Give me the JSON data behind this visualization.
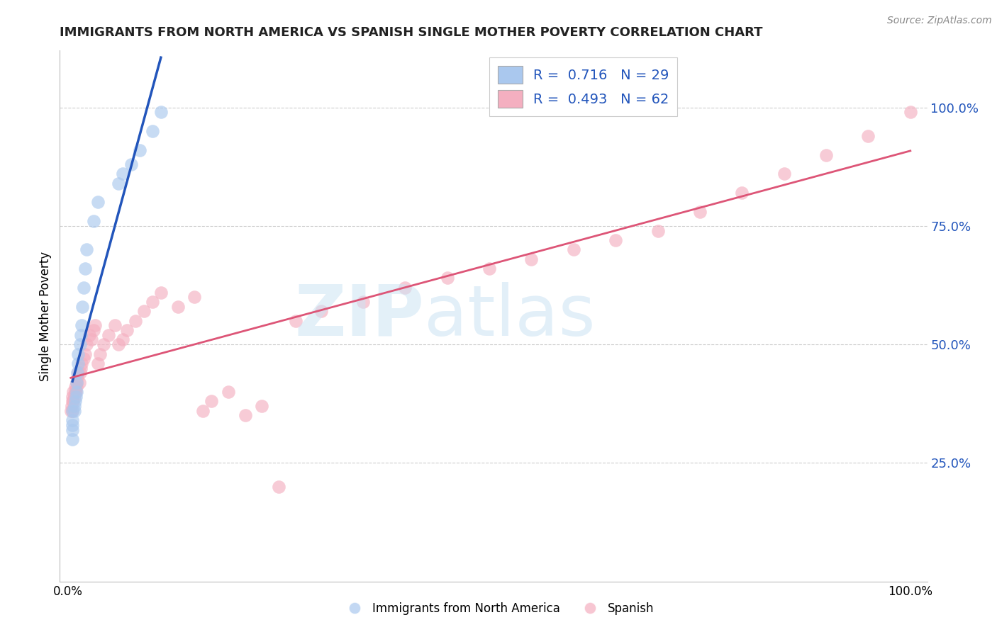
{
  "title": "IMMIGRANTS FROM NORTH AMERICA VS SPANISH SINGLE MOTHER POVERTY CORRELATION CHART",
  "source": "Source: ZipAtlas.com",
  "ylabel": "Single Mother Poverty",
  "legend_label1": "Immigrants from North America",
  "legend_label2": "Spanish",
  "R1": 0.716,
  "N1": 29,
  "R2": 0.493,
  "N2": 62,
  "color_blue": "#aac8ee",
  "color_pink": "#f4afc0",
  "line_blue": "#2255bb",
  "line_pink": "#dd5577",
  "blue_x": [
    0.005,
    0.005,
    0.005,
    0.005,
    0.005,
    0.007,
    0.007,
    0.008,
    0.009,
    0.01,
    0.01,
    0.011,
    0.012,
    0.012,
    0.014,
    0.015,
    0.016,
    0.017,
    0.018,
    0.02,
    0.022,
    0.03,
    0.035,
    0.06,
    0.065,
    0.075,
    0.085,
    0.1,
    0.11
  ],
  "blue_y": [
    0.3,
    0.32,
    0.33,
    0.34,
    0.36,
    0.36,
    0.37,
    0.38,
    0.39,
    0.4,
    0.42,
    0.44,
    0.46,
    0.48,
    0.5,
    0.52,
    0.54,
    0.58,
    0.62,
    0.66,
    0.7,
    0.76,
    0.8,
    0.84,
    0.86,
    0.88,
    0.91,
    0.95,
    0.99
  ],
  "pink_x": [
    0.003,
    0.004,
    0.005,
    0.005,
    0.005,
    0.006,
    0.006,
    0.007,
    0.008,
    0.008,
    0.009,
    0.01,
    0.01,
    0.011,
    0.012,
    0.013,
    0.014,
    0.015,
    0.016,
    0.018,
    0.02,
    0.022,
    0.025,
    0.028,
    0.03,
    0.032,
    0.035,
    0.038,
    0.042,
    0.048,
    0.055,
    0.06,
    0.065,
    0.07,
    0.08,
    0.09,
    0.1,
    0.11,
    0.13,
    0.15,
    0.16,
    0.17,
    0.19,
    0.21,
    0.23,
    0.25,
    0.27,
    0.3,
    0.35,
    0.4,
    0.45,
    0.5,
    0.55,
    0.6,
    0.65,
    0.7,
    0.75,
    0.8,
    0.85,
    0.9,
    0.95,
    1.0
  ],
  "pink_y": [
    0.36,
    0.37,
    0.36,
    0.38,
    0.39,
    0.38,
    0.4,
    0.39,
    0.4,
    0.41,
    0.4,
    0.42,
    0.41,
    0.43,
    0.44,
    0.42,
    0.44,
    0.45,
    0.46,
    0.47,
    0.48,
    0.5,
    0.52,
    0.51,
    0.53,
    0.54,
    0.46,
    0.48,
    0.5,
    0.52,
    0.54,
    0.5,
    0.51,
    0.53,
    0.55,
    0.57,
    0.59,
    0.61,
    0.58,
    0.6,
    0.36,
    0.38,
    0.4,
    0.35,
    0.37,
    0.2,
    0.55,
    0.57,
    0.59,
    0.62,
    0.64,
    0.66,
    0.68,
    0.7,
    0.72,
    0.74,
    0.78,
    0.82,
    0.86,
    0.9,
    0.94,
    0.99
  ]
}
